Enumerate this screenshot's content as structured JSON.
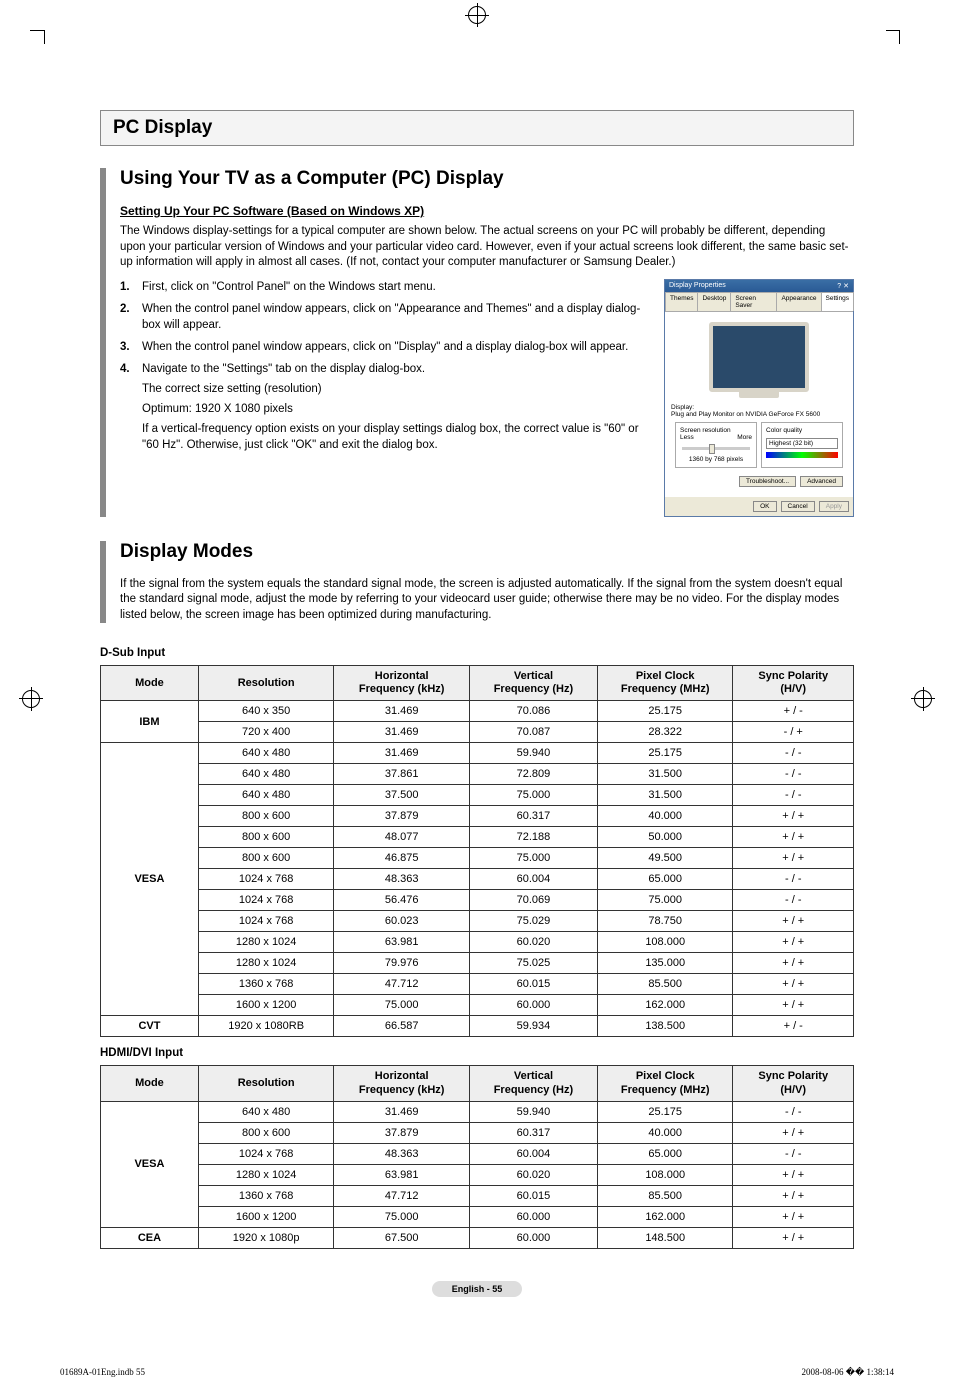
{
  "reg_marks": true,
  "section_title": "PC Display",
  "sub1": {
    "title": "Using Your TV as a Computer (PC) Display",
    "subhead": "Setting Up Your PC Software (Based on Windows XP)",
    "intro": "The Windows display-settings for a typical computer are shown below. The actual screens on your PC will probably be different, depending upon your particular version of Windows and your particular video card. However, even if your actual screens look different, the same basic set-up information will apply in almost all cases. (If not, contact your computer manufacturer or Samsung Dealer.)",
    "steps": [
      {
        "n": "1.",
        "t": "First, click on \"Control Panel\" on the Windows start menu."
      },
      {
        "n": "2.",
        "t": "When the control panel window appears, click on \"Appearance and Themes\" and a display dialog-box will appear."
      },
      {
        "n": "3.",
        "t": "When the control panel window appears, click on \"Display\" and a display dialog-box will appear."
      },
      {
        "n": "4.",
        "t": "Navigate to the \"Settings\" tab on the display dialog-box.",
        "subs": [
          "The correct size setting (resolution)",
          "Optimum: 1920 X 1080 pixels",
          "If a vertical-frequency option exists on your display settings dialog box, the correct value is \"60\" or \"60 Hz\". Otherwise, just click \"OK\" and exit the dialog box."
        ]
      }
    ]
  },
  "dialog": {
    "title": "Display Properties",
    "tabs": [
      "Themes",
      "Desktop",
      "Screen Saver",
      "Appearance",
      "Settings"
    ],
    "active_tab": 4,
    "display_label": "Display:",
    "display_value": "Plug and Play Monitor on NVIDIA GeForce FX 5600",
    "res_group": "Screen resolution",
    "res_less": "Less",
    "res_more": "More",
    "res_value": "1360 by 768 pixels",
    "quality_group": "Color quality",
    "quality_value": "Highest (32 bit)",
    "btn_troubleshoot": "Troubleshoot...",
    "btn_advanced": "Advanced",
    "btn_ok": "OK",
    "btn_cancel": "Cancel",
    "btn_apply": "Apply"
  },
  "sub2": {
    "title": "Display Modes",
    "intro": "If the signal from the system equals the standard signal mode, the screen is adjusted automatically. If the signal from the system doesn't equal the standard signal mode, adjust the mode by referring to your videocard user guide; otherwise there may be no video. For the display modes listed below, the screen image has been optimized during manufacturing."
  },
  "table_headers": [
    "Mode",
    "Resolution",
    "Horizontal Frequency (kHz)",
    "Vertical Frequency (Hz)",
    "Pixel Clock Frequency (MHz)",
    "Sync Polarity (H/V)"
  ],
  "table1_label": "D-Sub Input",
  "table1": {
    "groups": [
      {
        "mode": "IBM",
        "rows": [
          [
            "640 x 350",
            "31.469",
            "70.086",
            "25.175",
            "+ / -"
          ],
          [
            "720 x 400",
            "31.469",
            "70.087",
            "28.322",
            "- / +"
          ]
        ]
      },
      {
        "mode": "VESA",
        "rows": [
          [
            "640 x 480",
            "31.469",
            "59.940",
            "25.175",
            "- / -"
          ],
          [
            "640 x 480",
            "37.861",
            "72.809",
            "31.500",
            "- / -"
          ],
          [
            "640 x 480",
            "37.500",
            "75.000",
            "31.500",
            "- / -"
          ],
          [
            "800 x 600",
            "37.879",
            "60.317",
            "40.000",
            "+ / +"
          ],
          [
            "800 x 600",
            "48.077",
            "72.188",
            "50.000",
            "+ / +"
          ],
          [
            "800 x 600",
            "46.875",
            "75.000",
            "49.500",
            "+ / +"
          ],
          [
            "1024 x 768",
            "48.363",
            "60.004",
            "65.000",
            "- / -"
          ],
          [
            "1024 x 768",
            "56.476",
            "70.069",
            "75.000",
            "- / -"
          ],
          [
            "1024 x 768",
            "60.023",
            "75.029",
            "78.750",
            "+ / +"
          ],
          [
            "1280 x 1024",
            "63.981",
            "60.020",
            "108.000",
            "+ / +"
          ],
          [
            "1280 x 1024",
            "79.976",
            "75.025",
            "135.000",
            "+ / +"
          ],
          [
            "1360 x 768",
            "47.712",
            "60.015",
            "85.500",
            "+ / +"
          ],
          [
            "1600 x 1200",
            "75.000",
            "60.000",
            "162.000",
            "+ / +"
          ]
        ]
      },
      {
        "mode": "CVT",
        "rows": [
          [
            "1920 x 1080RB",
            "66.587",
            "59.934",
            "138.500",
            "+ / -"
          ]
        ]
      }
    ]
  },
  "table2_label": "HDMI/DVI Input",
  "table2": {
    "groups": [
      {
        "mode": "VESA",
        "rows": [
          [
            "640 x 480",
            "31.469",
            "59.940",
            "25.175",
            "- / -"
          ],
          [
            "800 x 600",
            "37.879",
            "60.317",
            "40.000",
            "+ / +"
          ],
          [
            "1024 x 768",
            "48.363",
            "60.004",
            "65.000",
            "- / -"
          ],
          [
            "1280 x 1024",
            "63.981",
            "60.020",
            "108.000",
            "+ / +"
          ],
          [
            "1360 x 768",
            "47.712",
            "60.015",
            "85.500",
            "+ / +"
          ],
          [
            "1600 x 1200",
            "75.000",
            "60.000",
            "162.000",
            "+ / +"
          ]
        ]
      },
      {
        "mode": "CEA",
        "rows": [
          [
            "1920 x 1080p",
            "67.500",
            "60.000",
            "148.500",
            "+ / +"
          ]
        ]
      }
    ]
  },
  "footer_text": "English - 55",
  "print_left": "01689A-01Eng.indb   55",
  "print_right": "2008-08-06   �� 1:38:14",
  "colors": {
    "section_bg": "#f4f4f4",
    "section_border": "#888888",
    "accent_bar": "#888888",
    "table_header_bg": "#eeeeee",
    "table_border": "#333333",
    "dlg_title_bg": "#3a6ea5",
    "dlg_body_bg": "#ece9d8",
    "foot_pill_bg": "#dddddd"
  },
  "col_widths_pct": [
    13,
    18,
    18,
    17,
    18,
    16
  ]
}
